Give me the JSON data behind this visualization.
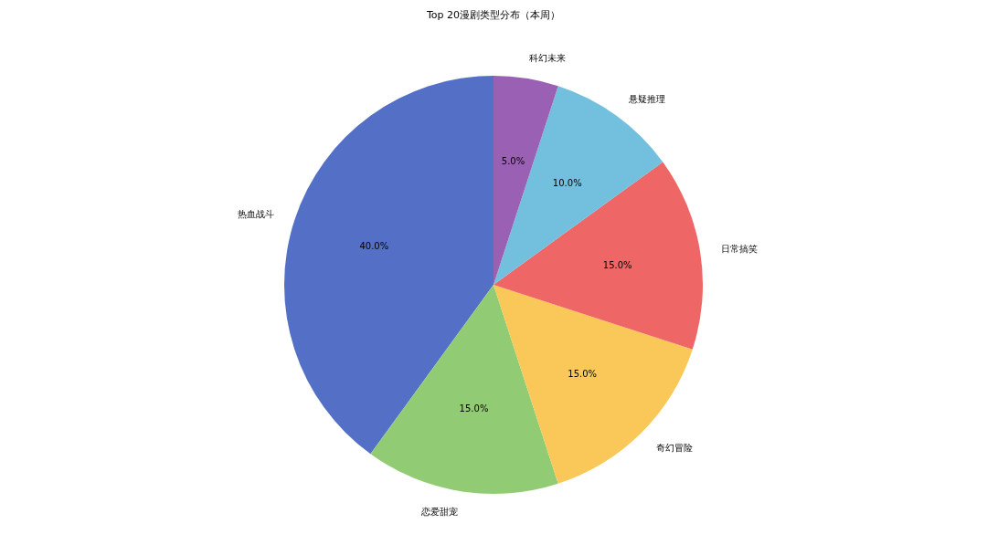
{
  "chart_data": {
    "type": "pie",
    "title": "Top 20漫剧类型分布（本周）",
    "categories": [
      "热血战斗",
      "恋爱甜宠",
      "奇幻冒险",
      "日常搞笑",
      "悬疑推理",
      "科幻未来"
    ],
    "values": [
      40,
      15,
      15,
      15,
      10,
      5
    ],
    "colors": [
      "#5470c6",
      "#91cc75",
      "#fac858",
      "#ee6666",
      "#73c0de",
      "#9a60b4"
    ],
    "value_labels": [
      "40.0%",
      "15.0%",
      "15.0%",
      "15.0%",
      "10.0%",
      "5.0%"
    ]
  }
}
